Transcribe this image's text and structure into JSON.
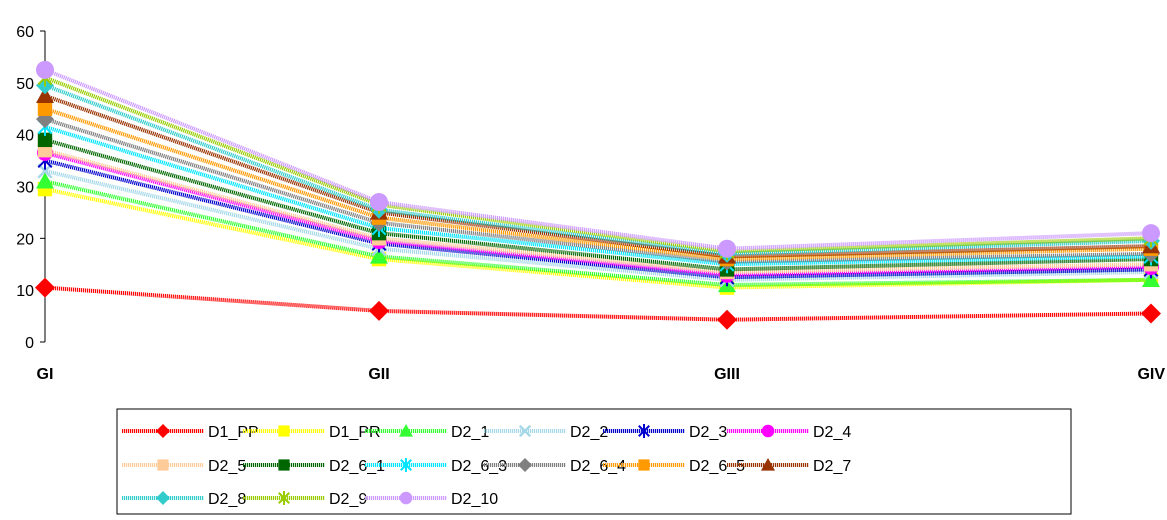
{
  "chart_data": {
    "type": "line",
    "categories": [
      "GI",
      "GII",
      "GIII",
      "GIV"
    ],
    "ylim": [
      0,
      60
    ],
    "yticks": [
      0,
      10,
      20,
      30,
      40,
      50,
      60
    ],
    "grid": false,
    "legend_position": "bottom",
    "series": [
      {
        "name": "D1_PP",
        "color": "#FF0000",
        "marker": "diamond",
        "values": [
          10.5,
          6.0,
          4.3,
          5.5
        ]
      },
      {
        "name": "D1_PR",
        "color": "#FFFF00",
        "marker": "square",
        "values": [
          29.5,
          16.0,
          10.5,
          12.0
        ]
      },
      {
        "name": "D2_1",
        "color": "#33FF33",
        "marker": "triangle",
        "values": [
          31.0,
          16.5,
          11.0,
          12.0
        ]
      },
      {
        "name": "D2_2",
        "color": "#A6D8E8",
        "marker": "x",
        "values": [
          33.0,
          18.0,
          12.0,
          13.5
        ]
      },
      {
        "name": "D2_3",
        "color": "#0000CC",
        "marker": "star",
        "values": [
          35.0,
          19.0,
          12.5,
          14.0
        ]
      },
      {
        "name": "D2_4",
        "color": "#FF00FF",
        "marker": "circle",
        "values": [
          36.5,
          19.5,
          13.0,
          14.5
        ]
      },
      {
        "name": "D2_5",
        "color": "#FFCC99",
        "marker": "square",
        "values": [
          37.0,
          20.0,
          13.5,
          15.0
        ]
      },
      {
        "name": "D2_6_1",
        "color": "#006600",
        "marker": "square",
        "values": [
          39.0,
          21.0,
          14.0,
          16.0
        ]
      },
      {
        "name": "D2_6_3",
        "color": "#00E5FF",
        "marker": "star",
        "values": [
          41.5,
          22.0,
          15.0,
          16.5
        ]
      },
      {
        "name": "D2_6_4",
        "color": "#808080",
        "marker": "diamond",
        "values": [
          43.0,
          23.0,
          15.5,
          17.0
        ]
      },
      {
        "name": "D2_6_5",
        "color": "#FF9900",
        "marker": "square",
        "values": [
          45.0,
          24.0,
          16.0,
          18.0
        ]
      },
      {
        "name": "D2_7",
        "color": "#993300",
        "marker": "triangle",
        "values": [
          47.5,
          25.0,
          16.5,
          18.5
        ]
      },
      {
        "name": "D2_8",
        "color": "#33CCCC",
        "marker": "diamond",
        "values": [
          49.5,
          25.5,
          17.0,
          19.5
        ]
      },
      {
        "name": "D2_9",
        "color": "#99CC00",
        "marker": "star",
        "values": [
          51.0,
          26.5,
          17.5,
          20.0
        ]
      },
      {
        "name": "D2_10",
        "color": "#CC99FF",
        "marker": "circle",
        "values": [
          52.5,
          27.0,
          18.0,
          21.0
        ]
      }
    ]
  }
}
